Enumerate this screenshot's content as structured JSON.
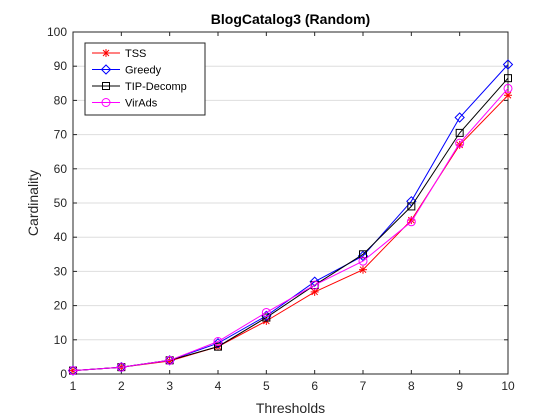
{
  "chart_data": {
    "type": "line",
    "title": "BlogCatalog3 (Random)",
    "xlabel": "Thresholds",
    "ylabel": "Cardinality",
    "x": [
      1,
      2,
      3,
      4,
      5,
      6,
      7,
      8,
      9,
      10
    ],
    "xlim": [
      1,
      10
    ],
    "ylim": [
      0,
      100
    ],
    "xticks": [
      "1",
      "2",
      "3",
      "4",
      "5",
      "6",
      "7",
      "8",
      "9",
      "10"
    ],
    "yticks": [
      "0",
      "10",
      "20",
      "30",
      "40",
      "50",
      "60",
      "70",
      "80",
      "90",
      "100"
    ],
    "grid": "horizontal",
    "legend_position": "top-left",
    "series": [
      {
        "name": "TSS",
        "color": "#ff0000",
        "marker": "asterisk",
        "values": [
          1,
          2,
          3.8,
          8,
          15.5,
          24,
          30.5,
          45,
          67,
          81.5
        ]
      },
      {
        "name": "Greedy",
        "color": "#0000ff",
        "marker": "diamond",
        "values": [
          1,
          2,
          4,
          9,
          17,
          27,
          34.5,
          50.5,
          75,
          90.5
        ]
      },
      {
        "name": "TIP-Decomp",
        "color": "#000000",
        "marker": "square",
        "values": [
          1,
          2,
          4,
          8,
          16.5,
          26,
          35,
          49,
          70.5,
          86.5
        ]
      },
      {
        "name": "VirAds",
        "color": "#ff00ff",
        "marker": "circle",
        "values": [
          1,
          2,
          4,
          9.5,
          18,
          26,
          33,
          44.5,
          67.5,
          83.5
        ]
      }
    ]
  }
}
